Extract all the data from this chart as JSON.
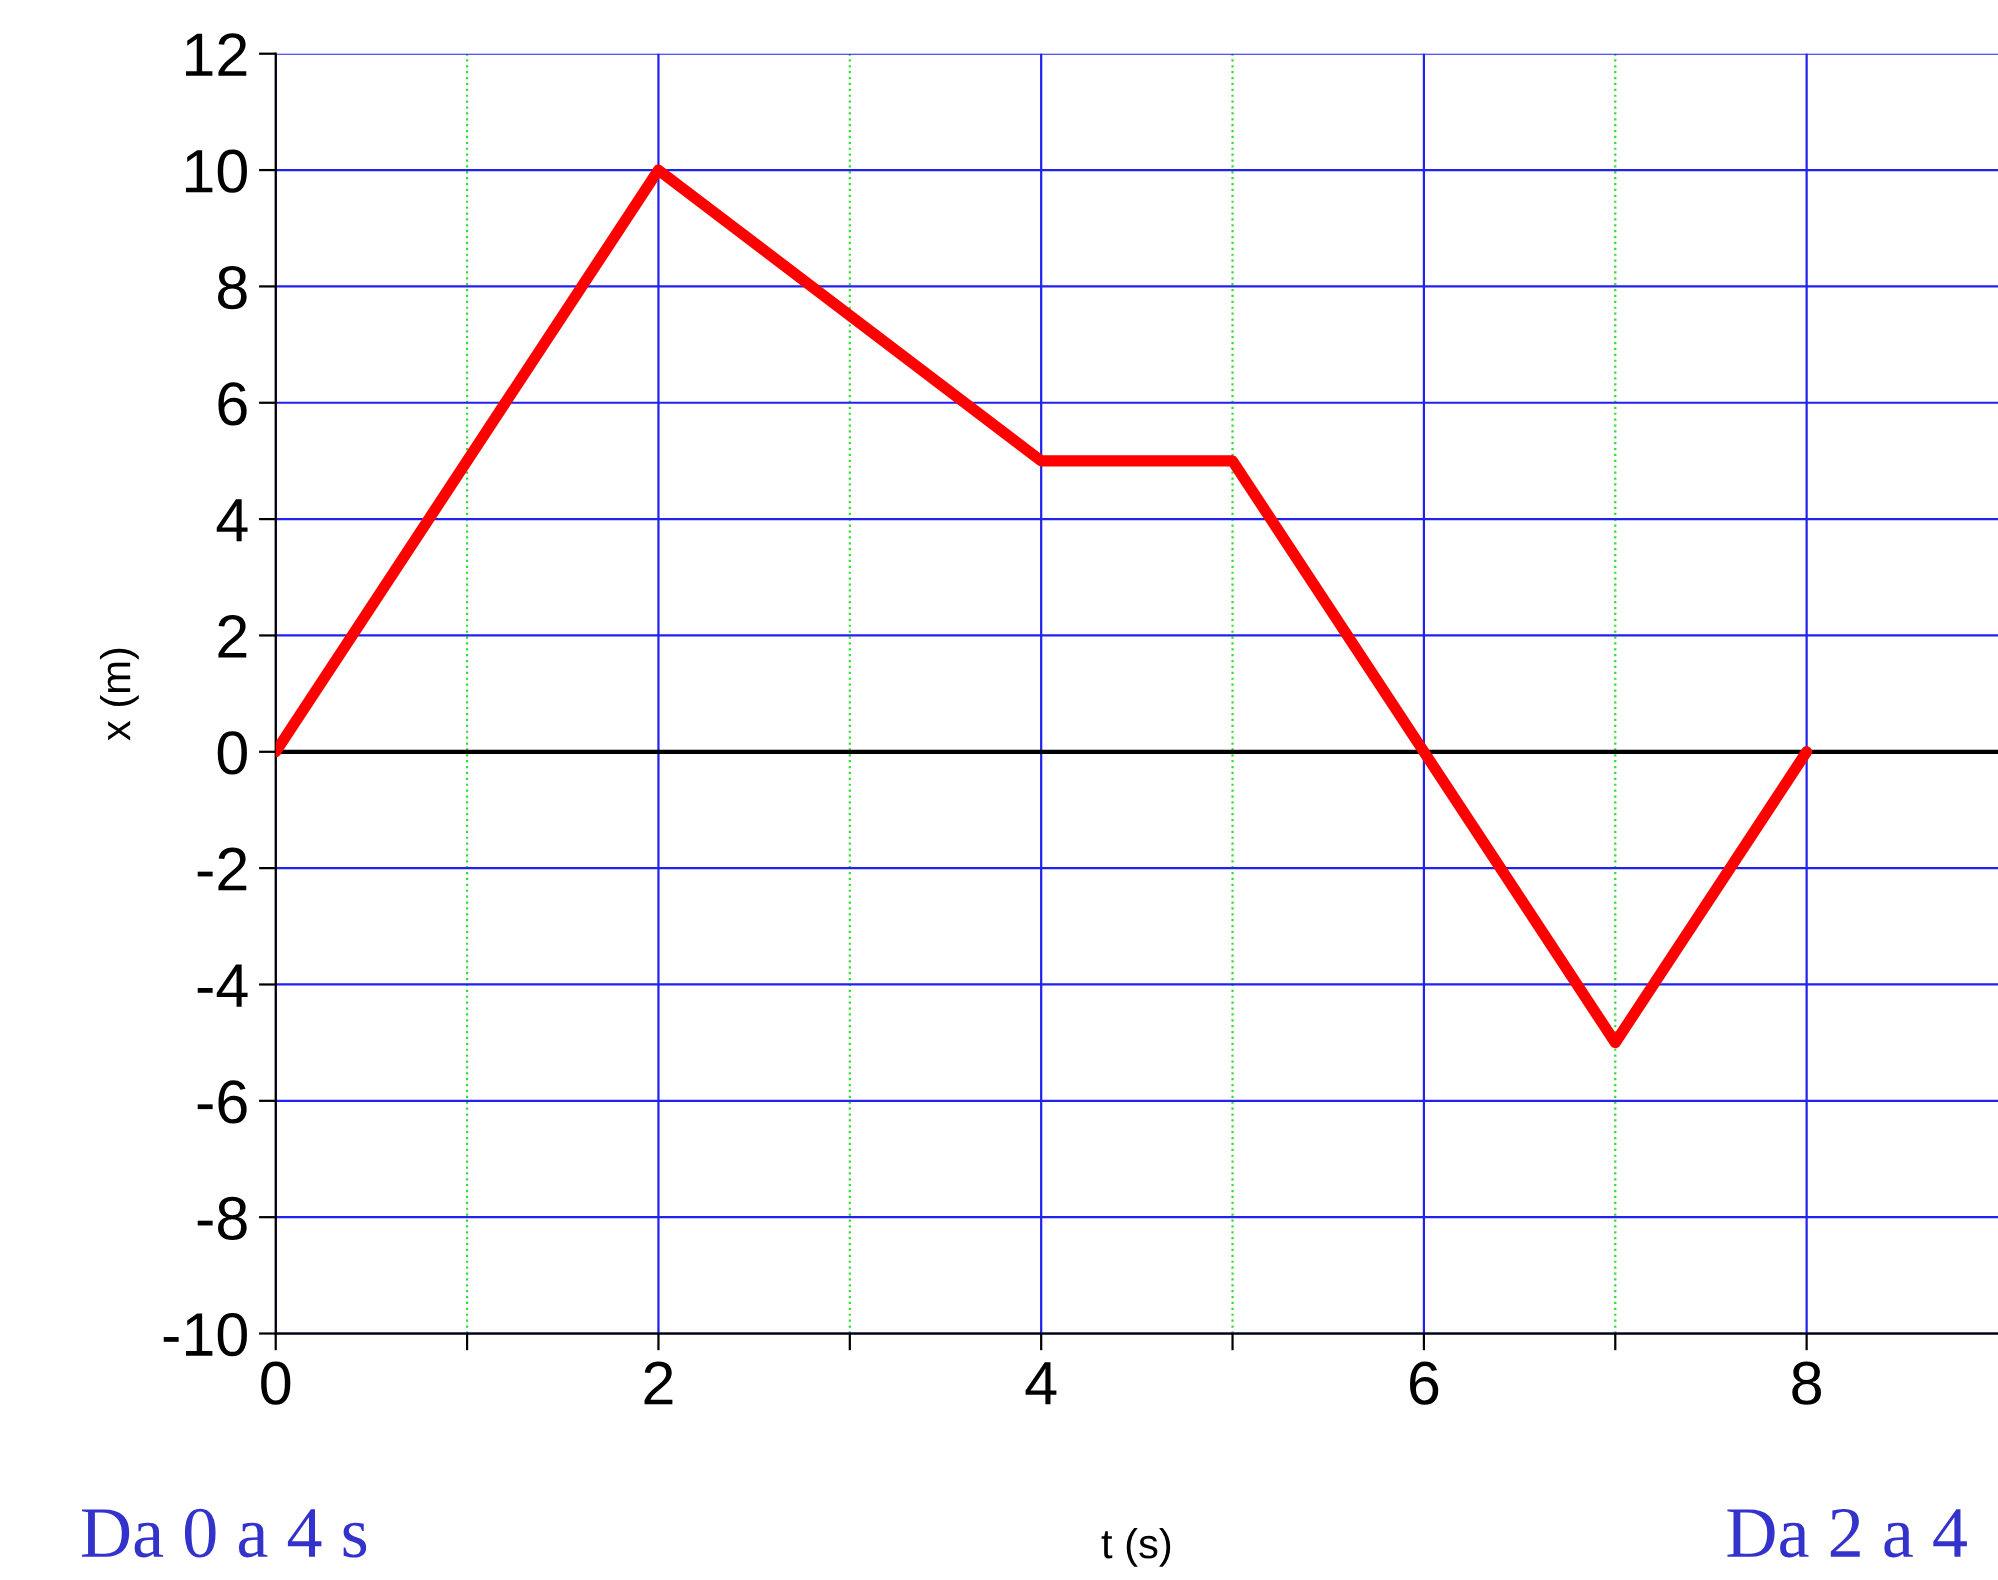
{
  "chart_data": {
    "type": "line",
    "xlabel": "t (s)",
    "ylabel": "x (m)",
    "x": [
      0,
      2,
      4,
      5,
      6,
      7,
      8
    ],
    "series": [
      {
        "color": "#ff0000",
        "values": [
          0,
          10,
          5,
          5,
          0,
          -5,
          0
        ]
      }
    ],
    "xlim": [
      0,
      9
    ],
    "ylim": [
      -10,
      12
    ],
    "xticks": [
      0,
      {
        "value": 1,
        "label": null
      },
      2,
      {
        "value": 3,
        "label": null
      },
      4,
      {
        "value": 5,
        "label": null
      },
      6,
      {
        "value": 7,
        "label": null
      },
      8
    ],
    "yticks": [
      -10,
      -8,
      -6,
      -4,
      -2,
      0,
      2,
      4,
      6,
      8,
      10,
      12
    ],
    "grid": true,
    "line_style": "solid",
    "marker": "none",
    "ref_lines": [
      {
        "axis": "y",
        "value": 0,
        "color": "#000000"
      }
    ],
    "annotations": [
      "Da 0 a 4 s",
      "Da 2 a 4"
    ]
  }
}
